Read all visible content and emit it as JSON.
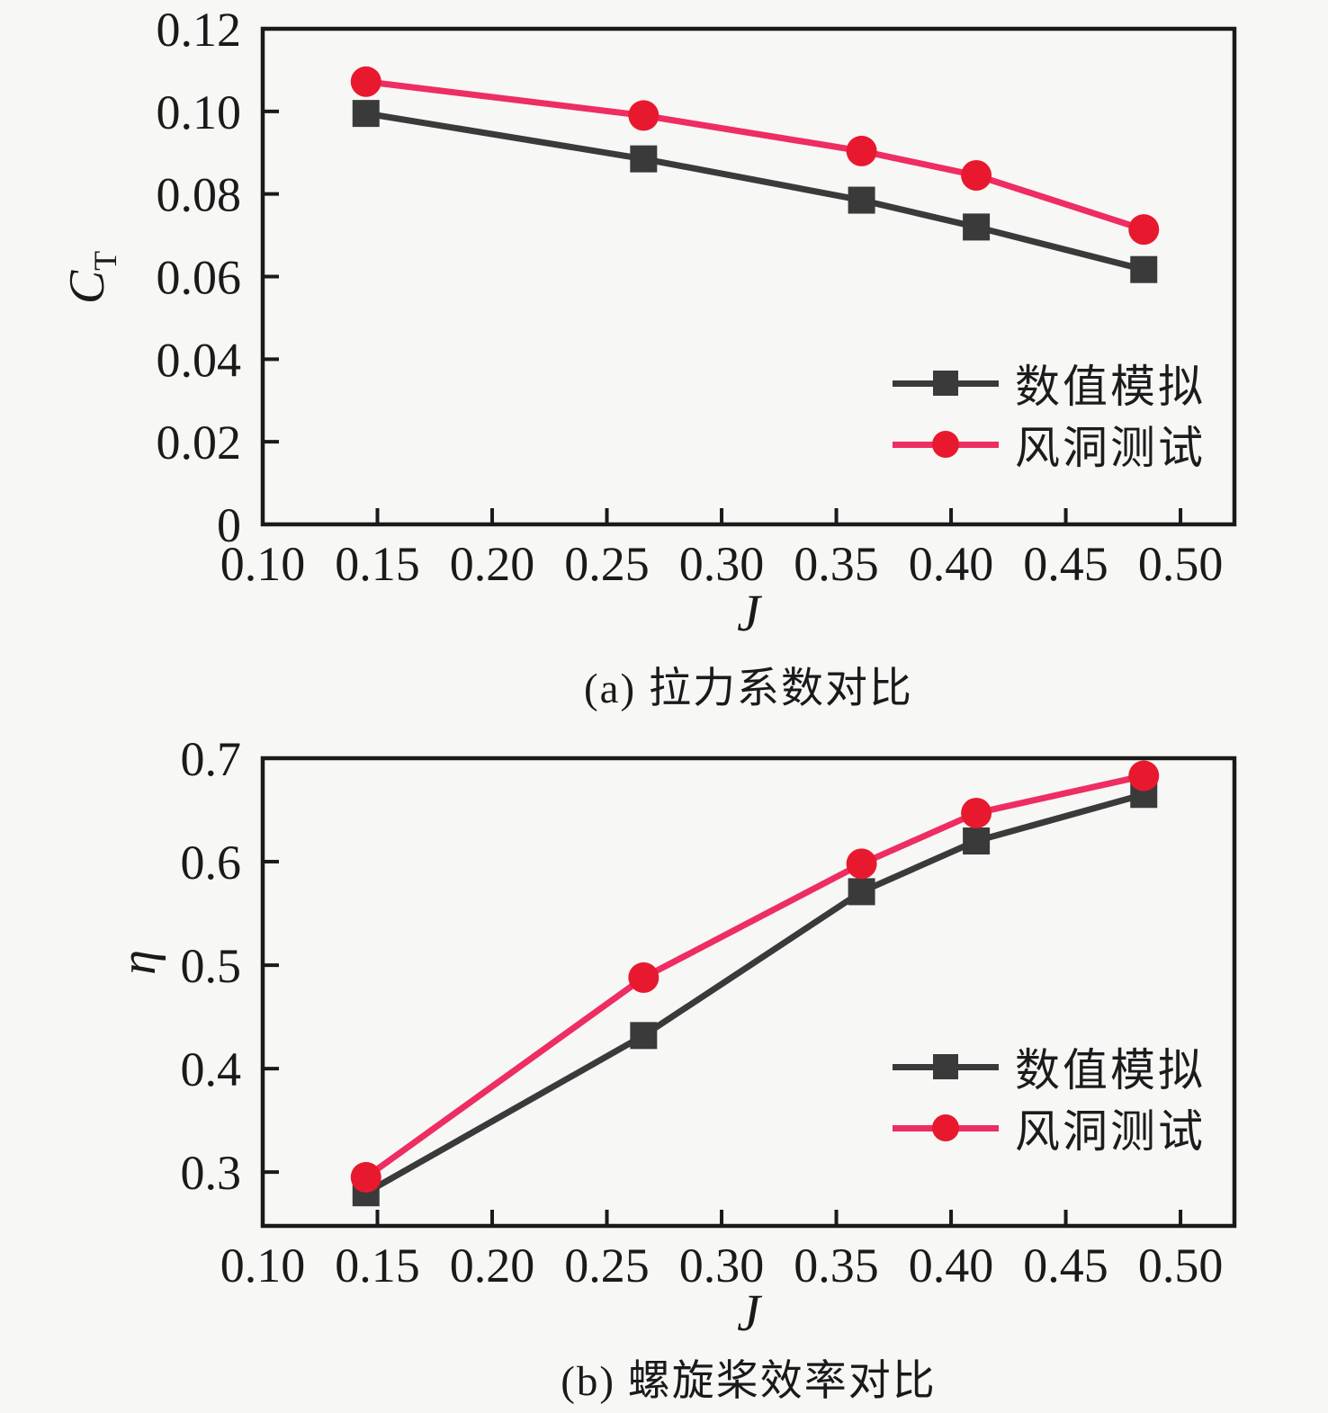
{
  "page": {
    "background": "#f7f7f5",
    "axis_color": "#1a1a1a"
  },
  "legend": {
    "items": [
      {
        "label": "数值模拟",
        "marker": "square",
        "color": "#3a3a3a"
      },
      {
        "label": "风洞测试",
        "marker": "circle",
        "color": "#e8192e"
      }
    ]
  },
  "chart_data": [
    {
      "type": "line",
      "caption": "(a) 拉力系数对比",
      "xlabel": "J",
      "ylabel": {
        "main": "C",
        "sub": "T"
      },
      "xlim": [
        0.1,
        0.5235
      ],
      "ylim": [
        0,
        0.12
      ],
      "grid": false,
      "legend_position": "inside-right-middle",
      "x_ticks": [
        0.1,
        0.15,
        0.2,
        0.25,
        0.3,
        0.35,
        0.4,
        0.45,
        0.5
      ],
      "x_tick_labels": [
        "0.10",
        "0.15",
        "0.20",
        "0.25",
        "0.30",
        "0.35",
        "0.40",
        "0.45",
        "0.50"
      ],
      "y_ticks": [
        0,
        0.02,
        0.04,
        0.06,
        0.08,
        0.1,
        0.12
      ],
      "y_tick_labels": [
        "0",
        "0.02",
        "0.04",
        "0.06",
        "0.08",
        "0.10",
        "0.12"
      ],
      "x": [
        0.145,
        0.266,
        0.361,
        0.411,
        0.484
      ],
      "series": [
        {
          "name": "数值模拟",
          "marker": "square",
          "line_color": "#3a3a3a",
          "marker_color": "#3a3a3a",
          "values": [
            0.0995,
            0.0885,
            0.0785,
            0.072,
            0.0617
          ]
        },
        {
          "name": "风洞测试",
          "marker": "circle",
          "line_color": "#ee2d62",
          "marker_color": "#e8192e",
          "values": [
            0.1072,
            0.099,
            0.0904,
            0.0845,
            0.0714
          ]
        }
      ]
    },
    {
      "type": "line",
      "caption": "(b) 螺旋桨效率对比",
      "xlabel": "J",
      "ylabel": {
        "main": "η",
        "sub": ""
      },
      "xlim": [
        0.1,
        0.5235
      ],
      "ylim": [
        0.248,
        0.7
      ],
      "grid": false,
      "legend_position": "inside-right-lower",
      "x_ticks": [
        0.1,
        0.15,
        0.2,
        0.25,
        0.3,
        0.35,
        0.4,
        0.45,
        0.5
      ],
      "x_tick_labels": [
        "0.10",
        "0.15",
        "0.20",
        "0.25",
        "0.30",
        "0.35",
        "0.40",
        "0.45",
        "0.50"
      ],
      "y_ticks": [
        0.3,
        0.4,
        0.5,
        0.6,
        0.7
      ],
      "y_tick_labels": [
        "0.3",
        "0.4",
        "0.5",
        "0.6",
        "0.7"
      ],
      "x": [
        0.145,
        0.266,
        0.361,
        0.411,
        0.484
      ],
      "series": [
        {
          "name": "数值模拟",
          "marker": "square",
          "line_color": "#3a3a3a",
          "marker_color": "#3a3a3a",
          "values": [
            0.28,
            0.432,
            0.571,
            0.62,
            0.665
          ]
        },
        {
          "name": "风洞测试",
          "marker": "circle",
          "line_color": "#ee2d62",
          "marker_color": "#e8192e",
          "values": [
            0.295,
            0.488,
            0.598,
            0.647,
            0.683
          ]
        }
      ]
    }
  ]
}
